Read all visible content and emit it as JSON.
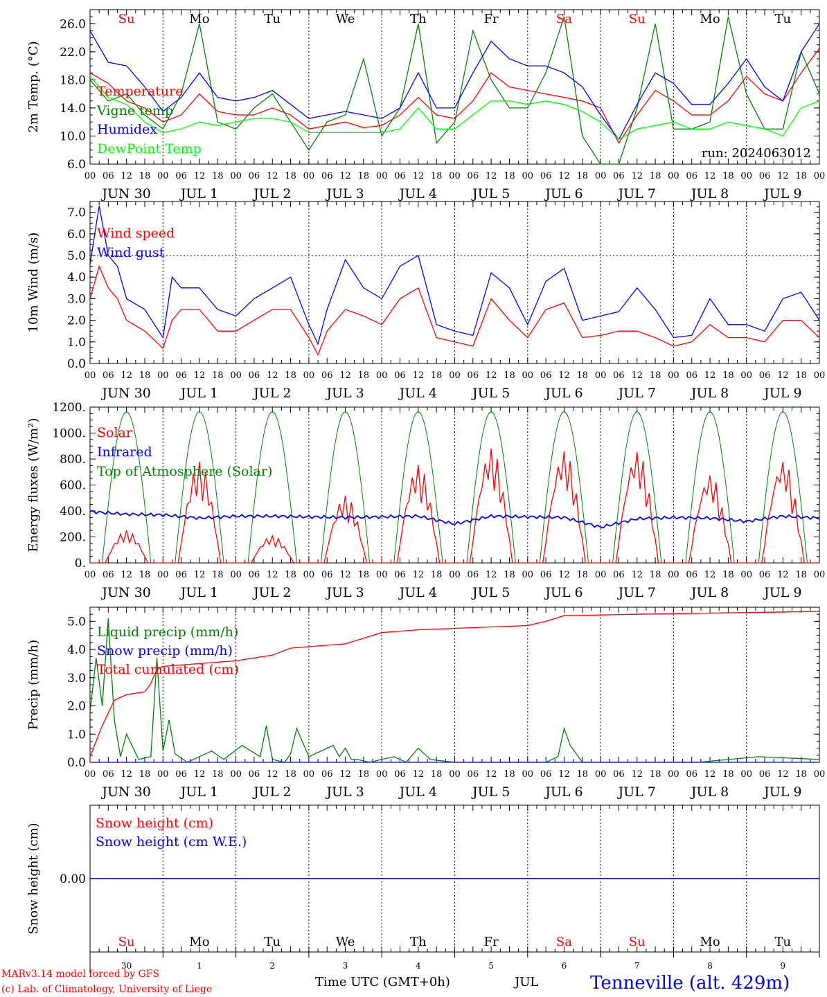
{
  "run_label": "run: 2024063012",
  "station": "Tenneville (alt. 429m)",
  "credits": [
    "MARv3.14 model forced by GFS",
    "(c) Lab. of Climatology, University of Liege"
  ],
  "xaxis": {
    "title": "Time UTC (GMT+0h)",
    "month": "JUL",
    "hour_labels": [
      "00",
      "06",
      "12",
      "18"
    ],
    "date_labels": [
      "JUN 30",
      "JUL  1",
      "JUL  2",
      "JUL  3",
      "JUL  4",
      "JUL  5",
      "JUL  6",
      "JUL  7",
      "JUL  8",
      "JUL  9"
    ],
    "weekdays": [
      "Su",
      "Mo",
      "Tu",
      "We",
      "Th",
      "Fr",
      "Sa",
      "Su",
      "Mo",
      "Tu"
    ],
    "weekday_colors": [
      "#ff0000",
      "#000000",
      "#000000",
      "#000000",
      "#000000",
      "#000000",
      "#ff0000",
      "#ff0000",
      "#000000",
      "#000000"
    ],
    "day_numbers": [
      "30",
      "1",
      "2",
      "3",
      "4",
      "5",
      "6",
      "7",
      "8",
      "9"
    ],
    "final_hour_label": "00"
  },
  "chart_data": [
    {
      "type": "line",
      "ylabel": "2m Temp. (°C)",
      "ylim": [
        6,
        28
      ],
      "yticks": [
        "6.0",
        "10.0",
        "14.0",
        "18.0",
        "22.0",
        "26.0"
      ],
      "ytick_values": [
        6,
        10,
        14,
        18,
        22,
        26
      ],
      "x_unit": "hours since JUN 30 00 UTC",
      "series": [
        {
          "name": "Temperature",
          "color": "#ff0000",
          "x": [
            0,
            6,
            12,
            18,
            24,
            30,
            36,
            42,
            48,
            54,
            60,
            66,
            72,
            78,
            84,
            90,
            96,
            102,
            108,
            114,
            120,
            126,
            132,
            138,
            144,
            150,
            156,
            162,
            168,
            174,
            180,
            186,
            192,
            198,
            204,
            210,
            216,
            222,
            228,
            234,
            240
          ],
          "y": [
            19,
            17.5,
            15,
            14,
            12,
            13,
            16,
            13.5,
            13,
            13,
            14,
            13,
            11,
            11.5,
            12,
            11.2,
            11.5,
            13,
            15.5,
            13,
            12.5,
            15,
            19,
            17,
            16.5,
            16,
            15.5,
            15,
            14,
            9,
            13,
            16.5,
            15,
            13,
            13,
            15,
            18.5,
            16,
            15,
            19,
            22.5
          ]
        },
        {
          "name": "Vigne temp",
          "color": "#008000",
          "x": [
            0,
            6,
            12,
            18,
            24,
            30,
            36,
            42,
            48,
            54,
            60,
            66,
            72,
            78,
            84,
            90,
            96,
            102,
            108,
            114,
            120,
            126,
            132,
            138,
            144,
            150,
            156,
            162,
            168,
            174,
            180,
            186,
            192,
            198,
            204,
            210,
            216,
            222,
            228,
            234,
            240
          ],
          "y": [
            18,
            15,
            16,
            13,
            11,
            16,
            26,
            12,
            11,
            14,
            16,
            12,
            8,
            12,
            13,
            21,
            10,
            14,
            26,
            9,
            12,
            25,
            18,
            14,
            14,
            19,
            27,
            10,
            6,
            6,
            14,
            26,
            11,
            11,
            12,
            27,
            16,
            11,
            11,
            22,
            16
          ]
        },
        {
          "name": "Humidex",
          "color": "#0000ff",
          "x": [
            0,
            6,
            12,
            18,
            24,
            30,
            36,
            42,
            48,
            54,
            60,
            66,
            72,
            78,
            84,
            90,
            96,
            102,
            108,
            114,
            120,
            126,
            132,
            138,
            144,
            150,
            156,
            162,
            168,
            174,
            180,
            186,
            192,
            198,
            204,
            210,
            216,
            222,
            228,
            234,
            240
          ],
          "y": [
            25,
            20.5,
            20,
            17,
            13.5,
            15.5,
            19,
            15.5,
            15,
            15.5,
            16.5,
            14.5,
            12.5,
            13,
            13.5,
            13,
            12.5,
            14,
            19,
            14,
            14,
            19,
            23.5,
            21,
            20,
            20,
            19,
            17,
            13,
            9.5,
            14.5,
            19,
            17.5,
            14.5,
            14.5,
            17.5,
            21,
            17,
            15,
            22,
            26
          ]
        },
        {
          "name": "DewPoint Temp",
          "color": "#00ff00",
          "x": [
            0,
            6,
            12,
            18,
            24,
            30,
            36,
            42,
            48,
            54,
            60,
            66,
            72,
            78,
            84,
            90,
            96,
            102,
            108,
            114,
            120,
            126,
            132,
            138,
            144,
            150,
            156,
            162,
            168,
            174,
            180,
            186,
            192,
            198,
            204,
            210,
            216,
            222,
            228,
            234,
            240
          ],
          "y": [
            18.5,
            15.5,
            14.5,
            12,
            10.5,
            11,
            12,
            11.5,
            12,
            12.5,
            12.5,
            12,
            10.5,
            10.5,
            10.5,
            10.5,
            10.5,
            11,
            14,
            11,
            11,
            13,
            15,
            15,
            14.5,
            15,
            14.5,
            13.5,
            12,
            9.5,
            11,
            11.5,
            12,
            11,
            11,
            12,
            11.5,
            11,
            10,
            14,
            15
          ]
        }
      ]
    },
    {
      "type": "line",
      "ylabel": "10m Wind (m/s)",
      "ylim": [
        0,
        7.5
      ],
      "yticks": [
        "0.0",
        "1.0",
        "2.0",
        "3.0",
        "4.0",
        "5.0",
        "6.0",
        "7.0"
      ],
      "ytick_values": [
        0,
        1,
        2,
        3,
        4,
        5,
        6,
        7
      ],
      "reference_line": 5.0,
      "x_unit": "hours since JUN 30 00 UTC",
      "series": [
        {
          "name": "Wind speed",
          "color": "#ff0000",
          "x": [
            0,
            3,
            6,
            9,
            12,
            18,
            24,
            27,
            30,
            36,
            42,
            48,
            54,
            60,
            66,
            72,
            75,
            78,
            84,
            90,
            96,
            102,
            108,
            114,
            120,
            126,
            132,
            138,
            144,
            150,
            156,
            162,
            168,
            174,
            180,
            186,
            192,
            198,
            204,
            210,
            216,
            222,
            228,
            234,
            240
          ],
          "y": [
            3,
            4.5,
            3.5,
            3,
            2,
            1.5,
            0.7,
            2,
            2.5,
            2.5,
            1.5,
            1.5,
            2,
            2.5,
            2.5,
            1.2,
            0.4,
            1.5,
            2.5,
            2.2,
            1.8,
            3,
            3.5,
            1.2,
            1,
            0.8,
            3,
            2,
            1.2,
            2.5,
            2.8,
            1.2,
            1.3,
            1.5,
            1.5,
            1.2,
            0.8,
            1,
            1.8,
            1.2,
            1.2,
            1,
            2,
            2,
            1.2
          ]
        },
        {
          "name": "Wind gust",
          "color": "#0000ff",
          "x": [
            0,
            3,
            6,
            9,
            12,
            18,
            24,
            27,
            30,
            36,
            42,
            48,
            54,
            60,
            66,
            72,
            75,
            78,
            84,
            90,
            96,
            102,
            108,
            114,
            120,
            126,
            132,
            138,
            144,
            150,
            156,
            162,
            168,
            174,
            180,
            186,
            192,
            198,
            204,
            210,
            216,
            222,
            228,
            234,
            240
          ],
          "y": [
            4.6,
            7.3,
            5,
            4.5,
            3,
            2.5,
            1.2,
            4,
            3.5,
            3.5,
            2.5,
            2.2,
            3,
            3.5,
            4,
            1.8,
            0.9,
            2.5,
            4.8,
            3.5,
            3,
            4.5,
            5,
            1.8,
            1.5,
            1.3,
            4.2,
            3.5,
            1.8,
            3.8,
            4.4,
            2,
            2.2,
            2.4,
            3.5,
            2.5,
            1.2,
            1.3,
            3,
            1.8,
            1.8,
            1.5,
            3,
            3.3,
            2
          ]
        }
      ]
    },
    {
      "type": "line",
      "ylabel": "Energy fluxes (W/m²)",
      "ylim": [
        0,
        1200
      ],
      "yticks": [
        "0.",
        "200.",
        "400.",
        "600.",
        "800.",
        "1000.",
        "1200."
      ],
      "ytick_values": [
        0,
        200,
        400,
        600,
        800,
        1000,
        1200
      ],
      "x_unit": "hours since JUN 30 00 UTC",
      "toa_peak": 1165,
      "series": [
        {
          "name": "Solar",
          "color": "#ff0000",
          "daily_peaks": [
            250,
            780,
            210,
            520,
            760,
            890,
            870,
            870,
            690,
            800
          ]
        },
        {
          "name": "Infrared",
          "color": "#0000ff",
          "x": [
            0,
            12,
            24,
            36,
            48,
            60,
            72,
            84,
            96,
            108,
            120,
            132,
            144,
            156,
            168,
            180,
            192,
            204,
            216,
            228,
            240
          ],
          "y": [
            395,
            375,
            370,
            345,
            360,
            360,
            355,
            350,
            355,
            360,
            300,
            360,
            355,
            350,
            275,
            340,
            350,
            345,
            320,
            360,
            345
          ]
        },
        {
          "name": "Top of Atmosphere (Solar)",
          "color": "#008000"
        }
      ]
    },
    {
      "type": "line",
      "ylabel": "Precip (mm/h)",
      "ylim": [
        0,
        5.5
      ],
      "yticks": [
        "0.0",
        "1.0",
        "2.0",
        "3.0",
        "4.0",
        "5.0"
      ],
      "ytick_values": [
        0,
        1,
        2,
        3,
        4,
        5
      ],
      "x_unit": "hours since JUN 30 00 UTC",
      "series": [
        {
          "name": "Liquid precip (mm/h)",
          "color": "#008000",
          "x": [
            0,
            2,
            4,
            6,
            8,
            10,
            12,
            16,
            20,
            22,
            24,
            26,
            28,
            32,
            40,
            44,
            50,
            56,
            58,
            60,
            64,
            66,
            68,
            72,
            80,
            82,
            84,
            86,
            88,
            92,
            96,
            100,
            104,
            108,
            110,
            112,
            120,
            150,
            154,
            156,
            158,
            162,
            168,
            200,
            220,
            240
          ],
          "y": [
            1.8,
            3.7,
            2,
            5.1,
            1.5,
            0.2,
            1,
            0.1,
            0.2,
            3.7,
            0.4,
            1.5,
            0.3,
            0,
            0.4,
            0.1,
            0.6,
            0.2,
            1.3,
            0.1,
            0,
            0.3,
            1.2,
            0.2,
            0.6,
            0.2,
            0.5,
            0.1,
            0.1,
            0,
            0.1,
            0.2,
            0,
            0.5,
            0.3,
            0.1,
            0,
            0,
            0.2,
            1.2,
            0.6,
            0,
            0,
            0,
            0.2,
            0.1
          ]
        },
        {
          "name": "Snow precip (mm/h)",
          "color": "#0000ff",
          "x": [
            0,
            240
          ],
          "y": [
            0,
            0
          ]
        },
        {
          "name": "Total cumulated (cm)",
          "color": "#ff0000",
          "x": [
            0,
            4,
            8,
            12,
            18,
            20,
            22,
            24,
            48,
            60,
            66,
            72,
            84,
            96,
            108,
            132,
            144,
            150,
            156,
            180,
            240
          ],
          "y": [
            0.2,
            1.3,
            2.2,
            2.4,
            2.5,
            2.8,
            3.3,
            3.4,
            3.6,
            3.8,
            4.05,
            4.1,
            4.2,
            4.6,
            4.7,
            4.8,
            4.85,
            5.0,
            5.2,
            5.25,
            5.35
          ]
        }
      ]
    },
    {
      "type": "line",
      "ylabel": "Snow height (cm)",
      "ylim": [
        -1,
        1
      ],
      "yticks": [
        "0.00"
      ],
      "ytick_values": [
        0
      ],
      "x_unit": "hours since JUN 30 00 UTC",
      "series": [
        {
          "name": "Snow height (cm)",
          "color": "#ff0000",
          "x": [
            0,
            240
          ],
          "y": [
            0,
            0
          ]
        },
        {
          "name": "Snow height (cm W.E.)",
          "color": "#0000ff",
          "x": [
            0,
            240
          ],
          "y": [
            0,
            0
          ]
        }
      ]
    }
  ]
}
